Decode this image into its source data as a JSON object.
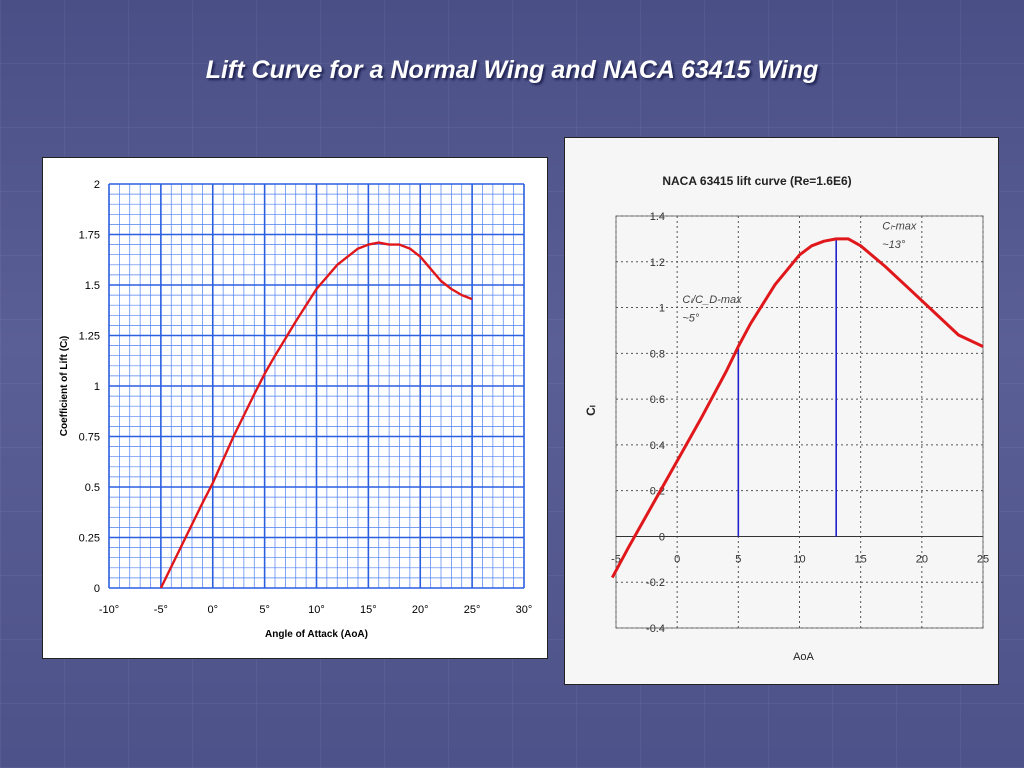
{
  "slide": {
    "title": "Lift Curve for a Normal Wing and NACA 63415 Wing"
  },
  "chart_data": [
    {
      "type": "line",
      "title": "",
      "xlabel": "Angle of Attack (AoA)",
      "ylabel": "Coefficient of Lift (Cₗ)",
      "xlim": [
        -10,
        30
      ],
      "ylim": [
        0,
        2
      ],
      "x_ticks": [
        "-10°",
        "-5°",
        "0°",
        "5°",
        "10°",
        "15°",
        "20°",
        "25°",
        "30°"
      ],
      "y_ticks": [
        "0",
        "0.25",
        "0.5",
        "0.75",
        "1",
        "1.25",
        "1.5",
        "1.75",
        "2"
      ],
      "grid": true,
      "colors": {
        "curve": "#e0181c",
        "grid_major": "#2a5fe0",
        "grid_minor": "#4f7ff0"
      },
      "series": [
        {
          "x": [
            -5,
            -3,
            -1,
            0,
            2,
            4,
            5,
            6,
            8,
            10,
            12,
            13,
            14,
            15,
            16,
            17,
            18,
            19,
            20,
            21,
            22,
            23,
            24,
            25
          ],
          "y": [
            0.0,
            0.21,
            0.42,
            0.52,
            0.75,
            0.96,
            1.06,
            1.15,
            1.32,
            1.48,
            1.6,
            1.64,
            1.68,
            1.7,
            1.71,
            1.7,
            1.7,
            1.68,
            1.64,
            1.58,
            1.52,
            1.48,
            1.45,
            1.43
          ]
        }
      ]
    },
    {
      "type": "line",
      "title": "NACA 63415 lift curve (Re=1.6E6)",
      "xlabel": "AoA",
      "ylabel": "Cₗ",
      "xlim": [
        -5,
        25
      ],
      "ylim": [
        -0.4,
        1.4
      ],
      "x_ticks": [
        "-5",
        "0",
        "5",
        "10",
        "15",
        "20",
        "25"
      ],
      "y_ticks": [
        "-0.4",
        "-0.2",
        "0",
        "0.2",
        "0.4",
        "0.6",
        "0.8",
        "1",
        "1.2",
        "1.4"
      ],
      "grid": true,
      "colors": {
        "curve": "#e0181c",
        "marker_line": "#2222cc",
        "grid": "#555555"
      },
      "series": [
        {
          "x": [
            -5.3,
            -4,
            -2,
            0,
            2,
            4,
            5,
            6,
            8,
            10,
            11,
            12,
            13,
            14,
            15,
            17,
            19,
            21,
            23,
            25
          ],
          "y": [
            -0.18,
            -0.05,
            0.14,
            0.33,
            0.52,
            0.72,
            0.83,
            0.93,
            1.1,
            1.23,
            1.27,
            1.29,
            1.3,
            1.3,
            1.27,
            1.18,
            1.08,
            0.98,
            0.88,
            0.83
          ]
        }
      ],
      "annotations": [
        {
          "line_1": "Cₗ/C_D-max",
          "line_2": "~5°",
          "x": 5,
          "y": 0.83
        },
        {
          "line_1": "Cₗ-max",
          "line_2": "~13°",
          "x": 13,
          "y": 1.3
        }
      ]
    }
  ]
}
